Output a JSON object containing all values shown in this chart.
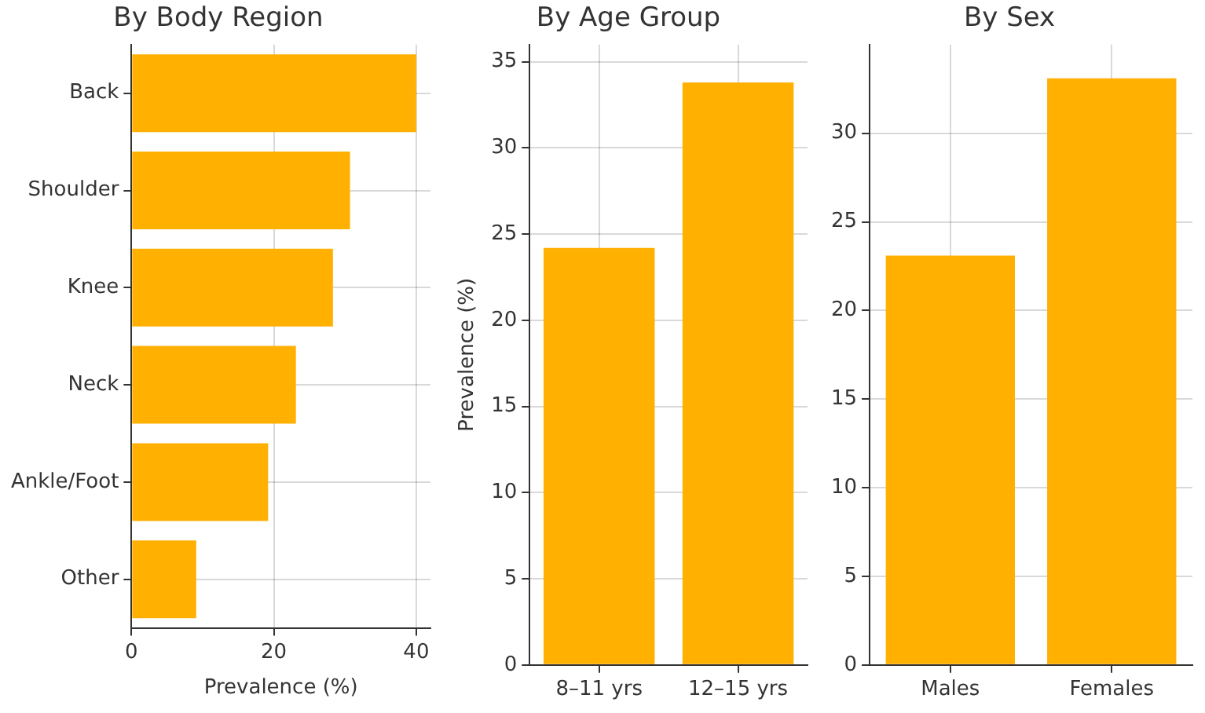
{
  "chart_data": [
    {
      "type": "bar",
      "title": "By Body Region",
      "orientation": "horizontal",
      "xlabel": "Prevalence (%)",
      "categories": [
        "Back",
        "Shoulder",
        "Knee",
        "Neck",
        "Ankle/Foot",
        "Other"
      ],
      "values": [
        40,
        30.7,
        28.3,
        23.1,
        19.2,
        9.1
      ],
      "color": "#ffb000",
      "xlim": [
        0,
        42
      ],
      "xticks": [
        0,
        20,
        40
      ],
      "grid": true
    },
    {
      "type": "bar",
      "title": "By Age Group",
      "ylabel": "Prevalence (%)",
      "categories": [
        "8–11 yrs",
        "12–15 yrs"
      ],
      "values": [
        24.2,
        33.8
      ],
      "color": "#ffb000",
      "ylim": [
        0,
        36
      ],
      "yticks": [
        0,
        5,
        10,
        15,
        20,
        25,
        30,
        35
      ],
      "grid": true
    },
    {
      "type": "bar",
      "title": "By Sex",
      "categories": [
        "Males",
        "Females"
      ],
      "values": [
        23.1,
        33.1
      ],
      "color": "#ffb000",
      "ylim": [
        0,
        35
      ],
      "yticks": [
        0,
        5,
        10,
        15,
        20,
        25,
        30
      ],
      "grid": true
    }
  ]
}
